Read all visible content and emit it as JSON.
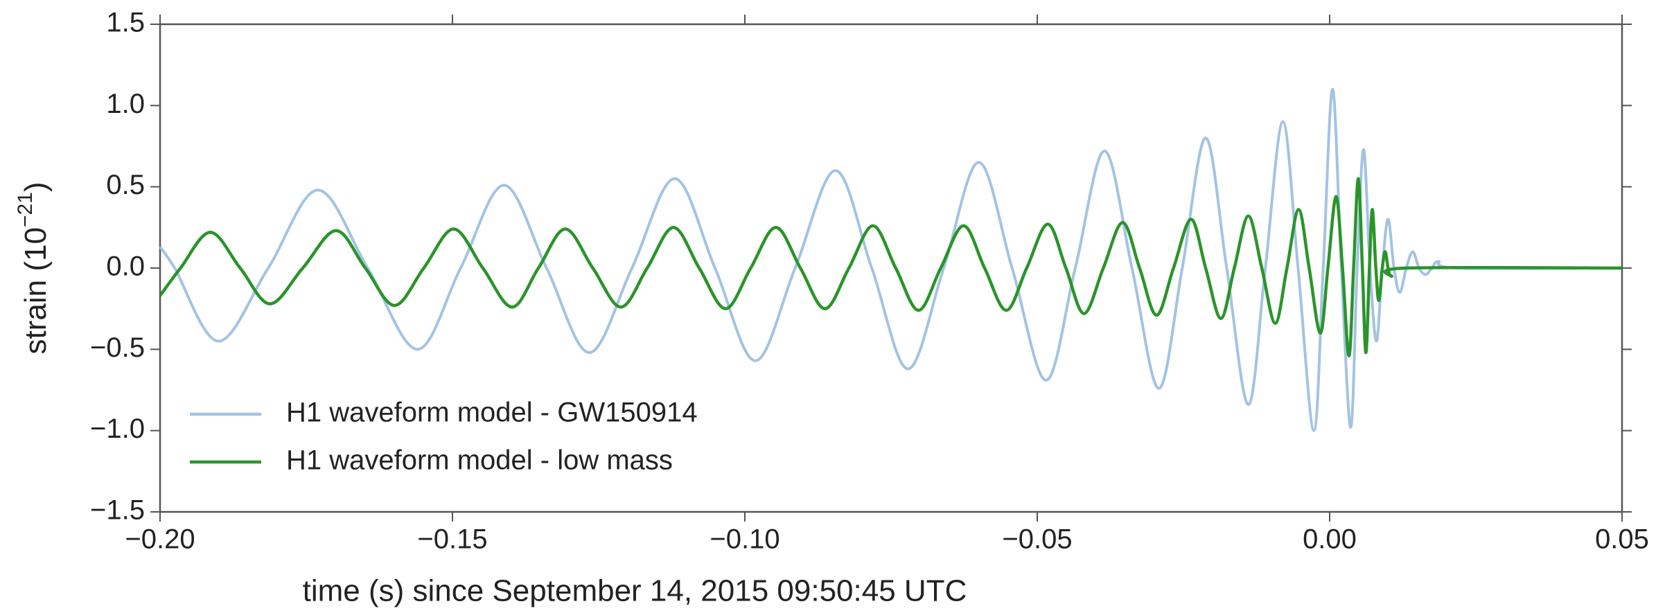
{
  "chart_data": {
    "type": "line",
    "xlabel": "time (s) since September 14, 2015 09:50:45 UTC",
    "ylabel": "strain (10",
    "ylabel_exponent": "−21",
    "ylabel_close": ")",
    "xlim": [
      -0.2,
      0.05
    ],
    "xticks": [
      {
        "value": -0.2,
        "label": "−0.20"
      },
      {
        "value": -0.15,
        "label": "−0.15"
      },
      {
        "value": -0.1,
        "label": "−0.10"
      },
      {
        "value": -0.05,
        "label": "−0.05"
      },
      {
        "value": 0,
        "label": "0.00"
      },
      {
        "value": 0.05,
        "label": "0.05"
      }
    ],
    "ylim": [
      -1.5,
      1.5
    ],
    "yticks": [
      {
        "value": -1.5,
        "label": "−1.5"
      },
      {
        "value": -1,
        "label": "−1.0"
      },
      {
        "value": -0.5,
        "label": "−0.5"
      },
      {
        "value": 0,
        "label": "0.0"
      },
      0.5,
      {
        "value": 1,
        "label": "1.0"
      },
      1.5
    ],
    "legend": "lower left",
    "series": [
      {
        "name": "H1 waveform model - GW150914",
        "color": "#a3c3e2",
        "x": [
          -0.2,
          -0.1975,
          -0.19,
          -0.1815,
          -0.173,
          -0.1645,
          -0.156,
          -0.1486,
          -0.1412,
          -0.1339,
          -0.1266,
          -0.1193,
          -0.112,
          -0.1051,
          -0.0982,
          -0.0914,
          -0.0845,
          -0.0783,
          -0.0721,
          -0.066,
          -0.06,
          -0.0543,
          -0.0485,
          -0.0435,
          -0.0385,
          -0.0338,
          -0.0292,
          -0.0252,
          -0.0212,
          -0.0176,
          -0.0139,
          -0.011,
          -0.008,
          -0.0054,
          -0.0027,
          -0.0011,
          0.0005,
          0.002,
          0.0036,
          0.0047,
          0.0058,
          0.0069,
          0.008,
          0.009,
          0.01,
          0.011,
          0.012,
          0.0131,
          0.0142,
          0.0153,
          0.0164,
          0.0175,
          0.0186,
          0.022,
          0.05
        ],
        "values": [
          0.13,
          0,
          -0.45,
          0,
          0.48,
          0,
          -0.5,
          0,
          0.51,
          0,
          -0.52,
          0,
          0.55,
          0,
          -0.57,
          0,
          0.6,
          0,
          -0.62,
          0,
          0.65,
          0,
          -0.69,
          0,
          0.72,
          0,
          -0.74,
          0,
          0.8,
          0,
          -0.84,
          0,
          0.9,
          0,
          -1.0,
          0,
          1.1,
          0,
          -0.98,
          0,
          0.73,
          0,
          -0.45,
          0,
          0.3,
          0,
          -0.15,
          0,
          0.1,
          0,
          -0.04,
          0,
          0.04,
          0,
          0
        ]
      },
      {
        "name": "H1 waveform model - low mass",
        "color": "#2a942a",
        "x": [
          -0.2,
          -0.1965,
          -0.1914,
          -0.1863,
          -0.1812,
          -0.1756,
          -0.1699,
          -0.1649,
          -0.1599,
          -0.1549,
          -0.1498,
          -0.1448,
          -0.1398,
          -0.1353,
          -0.1307,
          -0.126,
          -0.1212,
          -0.1167,
          -0.1122,
          -0.1078,
          -0.1033,
          -0.099,
          -0.0947,
          -0.0905,
          -0.0863,
          -0.0822,
          -0.0781,
          -0.0742,
          -0.0703,
          -0.0665,
          -0.0626,
          -0.059,
          -0.0553,
          -0.0518,
          -0.0482,
          -0.0451,
          -0.042,
          -0.0387,
          -0.0354,
          -0.0325,
          -0.0296,
          -0.0267,
          -0.0237,
          -0.0212,
          -0.0186,
          -0.0163,
          -0.0139,
          -0.0116,
          -0.0093,
          -0.0073,
          -0.0053,
          -0.0035,
          -0.0016,
          -0.0003,
          0.0011,
          0.0022,
          0.0033,
          0.0041,
          0.0049,
          0.0056,
          0.0062,
          0.0068,
          0.0073,
          0.0079,
          0.0084,
          0.009,
          0.0095,
          0.01,
          0.0106,
          0.013,
          0.05
        ],
        "values": [
          -0.17,
          0,
          0.22,
          0,
          -0.22,
          0,
          0.23,
          0,
          -0.23,
          0,
          0.24,
          0,
          -0.24,
          0,
          0.24,
          0,
          -0.24,
          0,
          0.25,
          0,
          -0.25,
          0,
          0.25,
          0,
          -0.25,
          0,
          0.26,
          0,
          -0.26,
          0,
          0.26,
          0,
          -0.26,
          0,
          0.27,
          0,
          -0.28,
          0,
          0.28,
          0,
          -0.29,
          0,
          0.3,
          0,
          -0.31,
          0,
          0.32,
          0,
          -0.34,
          0,
          0.36,
          0,
          -0.4,
          0,
          0.44,
          0,
          -0.54,
          0,
          0.55,
          0,
          -0.52,
          0,
          0.36,
          0,
          -0.2,
          0,
          0.1,
          0,
          -0.05,
          0,
          0
        ]
      }
    ]
  }
}
